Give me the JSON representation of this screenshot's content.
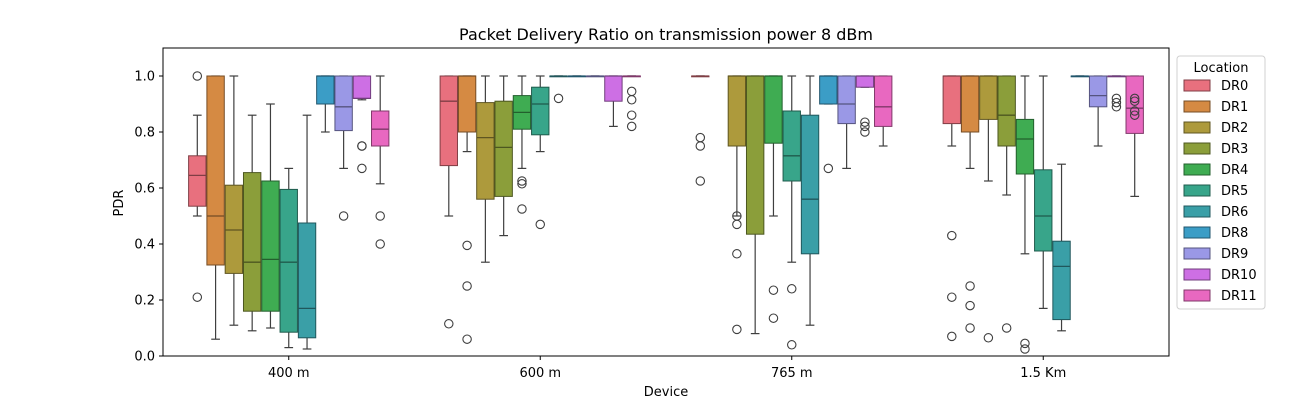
{
  "chart_data": {
    "type": "box",
    "title": "Packet Delivery Ratio on transmission power 8 dBm",
    "xlabel": "Device",
    "ylabel": "PDR",
    "ylim": [
      0,
      1.1
    ],
    "yticks": [
      "0.0",
      "0.2",
      "0.4",
      "0.6",
      "0.8",
      "1.0"
    ],
    "categories": [
      "400 m",
      "600 m",
      "765 m",
      "1.5 Km"
    ],
    "legend": {
      "title": "Location",
      "position": "right"
    },
    "series": [
      {
        "name": "DR0",
        "color": "#e8707e",
        "boxes": [
          {
            "min": 0.5,
            "q1": 0.535,
            "median": 0.645,
            "q3": 0.715,
            "max": 0.86,
            "outliers": [
              1.0,
              0.21
            ]
          },
          {
            "min": 0.5,
            "q1": 0.68,
            "median": 0.91,
            "q3": 1.0,
            "max": 1.0,
            "outliers": [
              0.115
            ]
          },
          {
            "min": 1.0,
            "q1": 1.0,
            "median": 1.0,
            "q3": 1.0,
            "max": 1.0,
            "outliers": [
              0.78,
              0.75,
              0.625
            ]
          },
          {
            "min": 0.75,
            "q1": 0.83,
            "median": 1.0,
            "q3": 1.0,
            "max": 1.0,
            "outliers": [
              0.43,
              0.21,
              0.07
            ]
          }
        ]
      },
      {
        "name": "DR1",
        "color": "#d58a43",
        "boxes": [
          {
            "min": 0.06,
            "q1": 0.325,
            "median": 0.5,
            "q3": 1.0,
            "max": 1.0,
            "outliers": []
          },
          {
            "min": 0.73,
            "q1": 0.8,
            "median": 1.0,
            "q3": 1.0,
            "max": 1.0,
            "outliers": [
              0.395,
              0.25,
              0.06
            ]
          },
          null,
          {
            "min": 0.67,
            "q1": 0.8,
            "median": 1.0,
            "q3": 1.0,
            "max": 1.0,
            "outliers": [
              0.25,
              0.18,
              0.1
            ]
          }
        ]
      },
      {
        "name": "DR2",
        "color": "#ad9a3c",
        "boxes": [
          {
            "min": 0.11,
            "q1": 0.295,
            "median": 0.45,
            "q3": 0.61,
            "max": 1.0,
            "outliers": []
          },
          {
            "min": 0.335,
            "q1": 0.56,
            "median": 0.78,
            "q3": 0.905,
            "max": 1.0,
            "outliers": []
          },
          {
            "min": 0.5,
            "q1": 0.75,
            "median": 1.0,
            "q3": 1.0,
            "max": 1.0,
            "outliers": [
              0.5,
              0.47,
              0.365,
              0.095
            ]
          },
          {
            "min": 0.625,
            "q1": 0.845,
            "median": 1.0,
            "q3": 1.0,
            "max": 1.0,
            "outliers": [
              0.065
            ]
          }
        ]
      },
      {
        "name": "DR3",
        "color": "#8b9e3a",
        "boxes": [
          {
            "min": 0.09,
            "q1": 0.16,
            "median": 0.335,
            "q3": 0.655,
            "max": 0.86,
            "outliers": []
          },
          {
            "min": 0.43,
            "q1": 0.57,
            "median": 0.745,
            "q3": 0.91,
            "max": 1.0,
            "outliers": []
          },
          {
            "min": 0.08,
            "q1": 0.435,
            "median": 1.0,
            "q3": 1.0,
            "max": 1.0,
            "outliers": []
          },
          {
            "min": 0.575,
            "q1": 0.75,
            "median": 0.86,
            "q3": 1.0,
            "max": 1.0,
            "outliers": [
              0.1
            ]
          }
        ]
      },
      {
        "name": "DR4",
        "color": "#3fac52",
        "boxes": [
          {
            "min": 0.1,
            "q1": 0.16,
            "median": 0.345,
            "q3": 0.625,
            "max": 0.9,
            "outliers": []
          },
          {
            "min": 0.67,
            "q1": 0.81,
            "median": 0.87,
            "q3": 0.93,
            "max": 1.0,
            "outliers": [
              0.625,
              0.615,
              0.525
            ]
          },
          {
            "min": 0.5,
            "q1": 0.76,
            "median": 1.0,
            "q3": 1.0,
            "max": 1.0,
            "outliers": [
              0.235,
              0.135
            ]
          },
          {
            "min": 0.365,
            "q1": 0.65,
            "median": 0.775,
            "q3": 0.845,
            "max": 1.0,
            "outliers": [
              0.045,
              0.025
            ]
          }
        ]
      },
      {
        "name": "DR5",
        "color": "#38a58a",
        "boxes": [
          {
            "min": 0.03,
            "q1": 0.085,
            "median": 0.335,
            "q3": 0.595,
            "max": 0.67,
            "outliers": []
          },
          {
            "min": 0.73,
            "q1": 0.79,
            "median": 0.9,
            "q3": 0.96,
            "max": 1.0,
            "outliers": [
              0.47
            ]
          },
          {
            "min": 0.335,
            "q1": 0.625,
            "median": 0.715,
            "q3": 0.875,
            "max": 1.0,
            "outliers": [
              0.24,
              0.04
            ]
          },
          {
            "min": 0.17,
            "q1": 0.375,
            "median": 0.5,
            "q3": 0.665,
            "max": 1.0,
            "outliers": []
          }
        ]
      },
      {
        "name": "DR6",
        "color": "#3a9fa7",
        "boxes": [
          {
            "min": 0.025,
            "q1": 0.065,
            "median": 0.17,
            "q3": 0.475,
            "max": 0.86,
            "outliers": []
          },
          {
            "min": 1.0,
            "q1": 1.0,
            "median": 1.0,
            "q3": 1.0,
            "max": 1.0,
            "outliers": [
              0.92
            ]
          },
          {
            "min": 0.11,
            "q1": 0.365,
            "median": 0.56,
            "q3": 0.86,
            "max": 1.0,
            "outliers": []
          },
          {
            "min": 0.09,
            "q1": 0.13,
            "median": 0.32,
            "q3": 0.41,
            "max": 0.685,
            "outliers": []
          }
        ]
      },
      {
        "name": "DR8",
        "color": "#3b9dc6",
        "boxes": [
          {
            "min": 0.8,
            "q1": 0.9,
            "median": 1.0,
            "q3": 1.0,
            "max": 1.0,
            "outliers": []
          },
          {
            "min": 1.0,
            "q1": 1.0,
            "median": 1.0,
            "q3": 1.0,
            "max": 1.0,
            "outliers": []
          },
          {
            "min": 0.9,
            "q1": 0.9,
            "median": 1.0,
            "q3": 1.0,
            "max": 1.0,
            "outliers": [
              0.67
            ]
          },
          {
            "min": 1.0,
            "q1": 1.0,
            "median": 1.0,
            "q3": 1.0,
            "max": 1.0,
            "outliers": []
          }
        ]
      },
      {
        "name": "DR9",
        "color": "#9a98e6",
        "boxes": [
          {
            "min": 0.67,
            "q1": 0.805,
            "median": 0.89,
            "q3": 1.0,
            "max": 1.0,
            "outliers": [
              0.5
            ]
          },
          {
            "min": 1.0,
            "q1": 1.0,
            "median": 1.0,
            "q3": 1.0,
            "max": 1.0,
            "outliers": []
          },
          {
            "min": 0.67,
            "q1": 0.83,
            "median": 0.9,
            "q3": 1.0,
            "max": 1.0,
            "outliers": []
          },
          {
            "min": 0.75,
            "q1": 0.89,
            "median": 0.93,
            "q3": 1.0,
            "max": 1.0,
            "outliers": []
          }
        ]
      },
      {
        "name": "DR10",
        "color": "#cd6fe4",
        "boxes": [
          {
            "min": 0.915,
            "q1": 0.92,
            "median": 0.92,
            "q3": 1.0,
            "max": 1.0,
            "outliers": [
              0.75,
              0.75,
              0.67
            ]
          },
          {
            "min": 0.82,
            "q1": 0.91,
            "median": 1.0,
            "q3": 1.0,
            "max": 1.0,
            "outliers": []
          },
          {
            "min": 0.96,
            "q1": 0.96,
            "median": 1.0,
            "q3": 1.0,
            "max": 1.0,
            "outliers": [
              0.835,
              0.82,
              0.8
            ]
          },
          {
            "min": 1.0,
            "q1": 1.0,
            "median": 1.0,
            "q3": 1.0,
            "max": 1.0,
            "outliers": [
              0.92,
              0.905,
              0.89
            ]
          }
        ]
      },
      {
        "name": "DR11",
        "color": "#e868c0",
        "boxes": [
          {
            "min": 0.615,
            "q1": 0.75,
            "median": 0.81,
            "q3": 0.875,
            "max": 1.0,
            "outliers": [
              0.5,
              0.4
            ]
          },
          {
            "min": 1.0,
            "q1": 1.0,
            "median": 1.0,
            "q3": 1.0,
            "max": 1.0,
            "outliers": [
              0.945,
              0.915,
              0.86,
              0.82
            ]
          },
          {
            "min": 0.75,
            "q1": 0.82,
            "median": 0.89,
            "q3": 1.0,
            "max": 1.0,
            "outliers": []
          },
          {
            "min": 0.57,
            "q1": 0.795,
            "median": 0.885,
            "q3": 1.0,
            "max": 1.0,
            "outliers": [
              0.92,
              0.91,
              0.875,
              0.86
            ]
          }
        ]
      }
    ]
  }
}
